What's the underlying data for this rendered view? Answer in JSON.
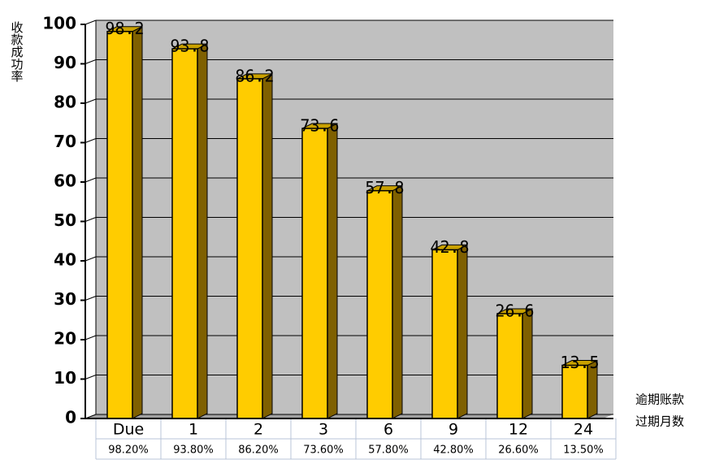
{
  "chart_data": {
    "type": "bar3d",
    "y_label": "收款成功率",
    "x_label": [
      "逾期账款",
      "过期月数"
    ],
    "categories": [
      "Due",
      "1",
      "2",
      "3",
      "6",
      "9",
      "12",
      "24"
    ],
    "values": [
      98.2,
      93.8,
      86.2,
      73.6,
      57.8,
      42.8,
      26.6,
      13.5
    ],
    "value_labels": [
      "98.20%",
      "93.80%",
      "86.20%",
      "73.60%",
      "57.80%",
      "42.80%",
      "26.60%",
      "13.50%"
    ],
    "color": "#ffcc00",
    "ylim": [
      0,
      100
    ],
    "yticks": [
      0,
      10,
      20,
      30,
      40,
      50,
      60,
      70,
      80,
      90,
      100
    ],
    "grid": true
  }
}
